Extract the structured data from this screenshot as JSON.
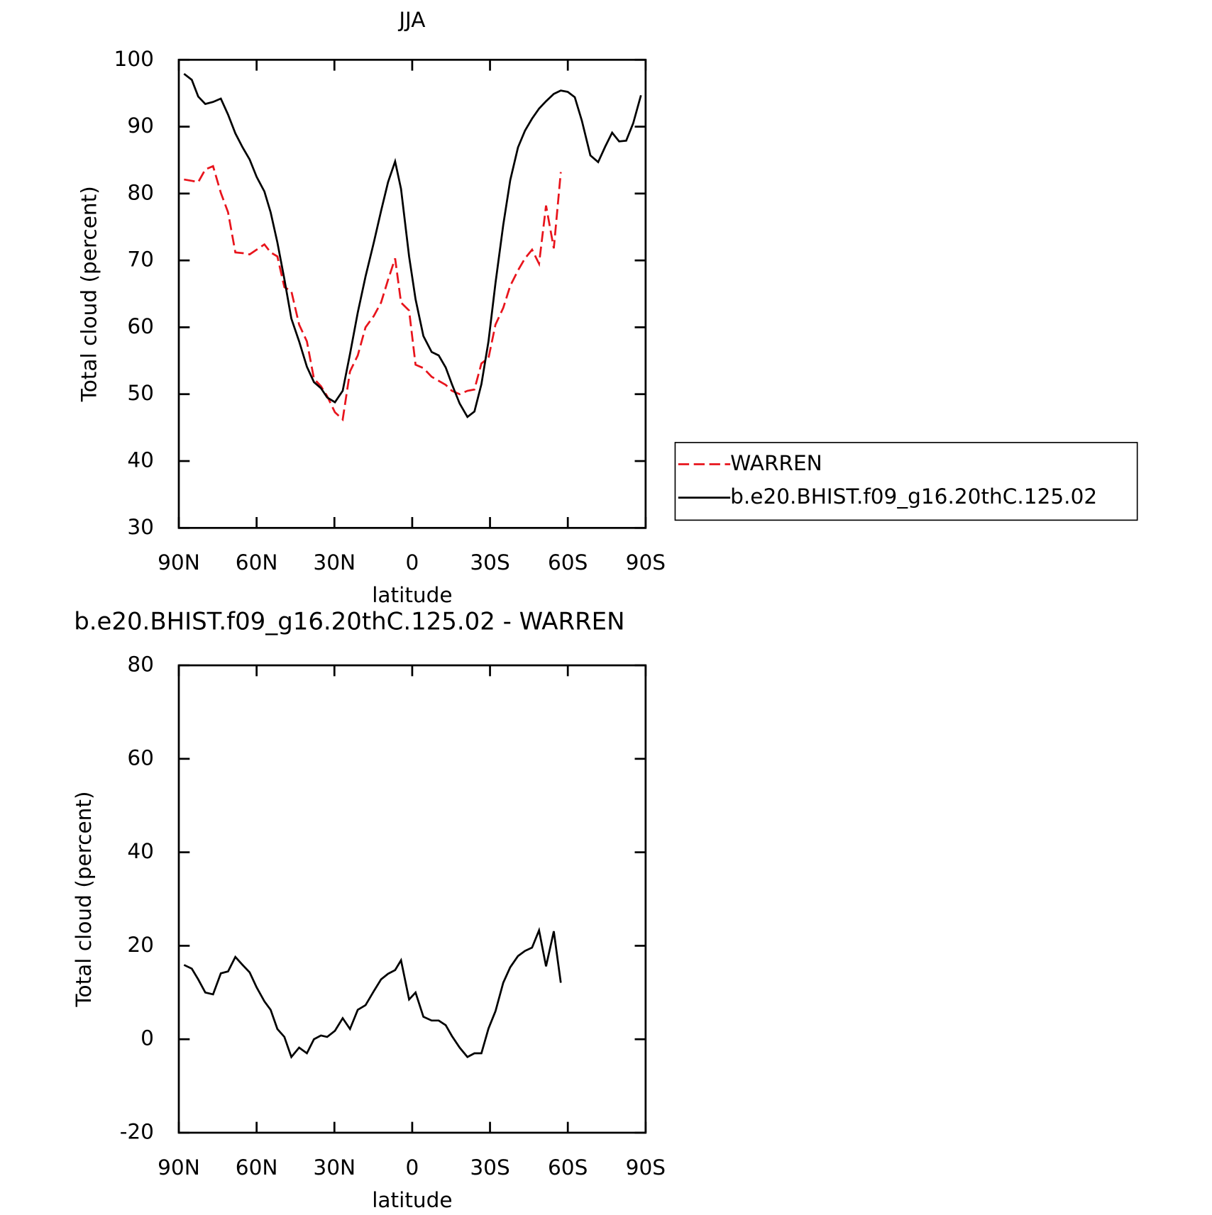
{
  "chart_data": [
    {
      "type": "line",
      "title": "JJA",
      "xlabel": "latitude",
      "ylabel": "Total cloud (percent)",
      "x": [
        88,
        85,
        82.5,
        79.8,
        76.8,
        73.8,
        71,
        68.2,
        65.4,
        62.7,
        60,
        57,
        54.6,
        52,
        49.3,
        46.6,
        43.6,
        40.6,
        37.9,
        35.2,
        32.8,
        29.8,
        26.8,
        24,
        21,
        18,
        14.8,
        12,
        9.3,
        6.6,
        4.3,
        1.2,
        -1.3,
        -4.3,
        -7.5,
        -10.2,
        -12.9,
        -15.3,
        -18.3,
        -21.3,
        -24,
        -26.7,
        -29.4,
        -32.1,
        -35.1,
        -37.8,
        -40.8,
        -43.5,
        -46.2,
        -48.9,
        -51.6,
        -54.6,
        -57.3,
        -60,
        -62.7,
        -65.4,
        -68.7,
        -71.7,
        -74.4,
        -77.1,
        -79.8,
        -82.5,
        -85.2,
        -88.2
      ],
      "series": [
        {
          "name": "WARREN",
          "color": "#e8141c",
          "line_style": "dashed",
          "values": [
            82.1,
            81.9,
            81.7,
            83.6,
            84.1,
            80.1,
            77.2,
            71.2,
            71.1,
            70.9,
            71.6,
            72.4,
            71.2,
            70.6,
            66,
            65.4,
            60.4,
            57.9,
            52.3,
            51.2,
            49.7,
            47.3,
            46.2,
            53.4,
            55.8,
            60,
            61.7,
            63.7,
            67.1,
            70.3,
            63.7,
            62.5,
            54.4,
            53.9,
            52.6,
            52,
            51.4,
            50.5,
            50,
            50.5,
            50.7,
            54.6,
            55.4,
            60.4,
            62.9,
            66.2,
            68.5,
            70.3,
            71.6,
            69.5,
            78.2,
            71.8,
            83.2,
            null,
            null,
            null,
            null,
            null,
            null,
            null,
            null,
            null,
            null,
            null
          ]
        },
        {
          "name": "b.e20.BHIST.f09_g16.20thC.125.02",
          "color": "#000000",
          "line_style": "solid",
          "values": [
            97.9,
            97,
            94.5,
            93.4,
            93.7,
            94.2,
            91.8,
            89,
            86.9,
            85.1,
            82.5,
            80.3,
            77.2,
            72.7,
            67.2,
            61.3,
            57.9,
            54.1,
            51.8,
            50.9,
            49.5,
            48.8,
            50.5,
            56,
            62.2,
            67.6,
            72.7,
            77.4,
            81.7,
            84.8,
            80.7,
            70.6,
            64.2,
            58.7,
            56.3,
            55.8,
            54,
            51.5,
            48.6,
            46.6,
            47.4,
            51.5,
            57.9,
            66.6,
            75.3,
            82,
            86.9,
            89.4,
            91.2,
            92.7,
            93.8,
            94.9,
            95.4,
            95.2,
            94.4,
            90.9,
            85.7,
            84.7,
            87,
            89.1,
            87.8,
            87.9,
            90.5,
            94.7
          ]
        }
      ],
      "xlim": [
        90,
        -90
      ],
      "xticks": [
        {
          "value": 90,
          "label": "90N"
        },
        {
          "value": 60,
          "label": "60N"
        },
        {
          "value": 30,
          "label": "30N"
        },
        0,
        {
          "value": -30,
          "label": "30S"
        },
        {
          "value": -60,
          "label": "60S"
        },
        {
          "value": -90,
          "label": "90S"
        }
      ],
      "ylim": [
        30,
        100
      ],
      "yticks": [
        30,
        40,
        50,
        60,
        70,
        80,
        90,
        100
      ],
      "legend": "right"
    },
    {
      "type": "line",
      "title": "b.e20.BHIST.f09_g16.20thC.125.02 - WARREN",
      "xlabel": "latitude",
      "ylabel": "Total cloud (percent)",
      "x": [
        88,
        85,
        82.5,
        79.8,
        76.8,
        73.8,
        71,
        68.2,
        65.4,
        62.7,
        60,
        57,
        54.6,
        52,
        49.3,
        46.6,
        43.6,
        40.6,
        37.9,
        35.2,
        32.8,
        29.8,
        26.8,
        24,
        21,
        18,
        14.8,
        12,
        9.3,
        6.6,
        4.3,
        1.2,
        -1.3,
        -4.3,
        -7.5,
        -10.2,
        -12.9,
        -15.3,
        -18.3,
        -21.3,
        -24,
        -26.7,
        -29.4,
        -32.1,
        -35.1,
        -37.8,
        -40.8,
        -43.5,
        -46.2,
        -48.9,
        -51.6,
        -54.6,
        -57.3,
        -60,
        -62.7,
        -65.4,
        -68.7,
        -71.7,
        -74.4,
        -77.1,
        -79.8,
        -82.5,
        -85.2,
        -88.2
      ],
      "color": "#000000",
      "line_style": "solid",
      "values": [
        15.9,
        15.1,
        12.8,
        10,
        9.6,
        14.1,
        14.5,
        17.6,
        15.9,
        14.3,
        11.1,
        8.1,
        6.3,
        2.2,
        0.5,
        -3.8,
        -1.8,
        -3,
        0,
        0.8,
        0.5,
        1.8,
        4.5,
        2.2,
        6.3,
        7.3,
        10.3,
        12.8,
        14,
        14.8,
        16.9,
        8.5,
        10,
        4.8,
        4,
        4,
        3,
        0.7,
        -1.8,
        -3.8,
        -3,
        -3,
        2.3,
        6,
        12.1,
        15.4,
        17.8,
        18.9,
        19.6,
        23.3,
        15.6,
        23.1,
        12.1,
        null,
        null,
        null,
        null,
        null,
        null,
        null,
        null,
        null,
        null,
        null
      ],
      "xlim": [
        90,
        -90
      ],
      "xticks": [
        {
          "value": 90,
          "label": "90N"
        },
        {
          "value": 60,
          "label": "60N"
        },
        {
          "value": 30,
          "label": "30N"
        },
        0,
        {
          "value": -30,
          "label": "30S"
        },
        {
          "value": -60,
          "label": "60S"
        },
        {
          "value": -90,
          "label": "90S"
        }
      ],
      "ylim": [
        -20,
        80
      ],
      "yticks": [
        -20,
        0,
        20,
        40,
        60,
        80
      ]
    }
  ]
}
